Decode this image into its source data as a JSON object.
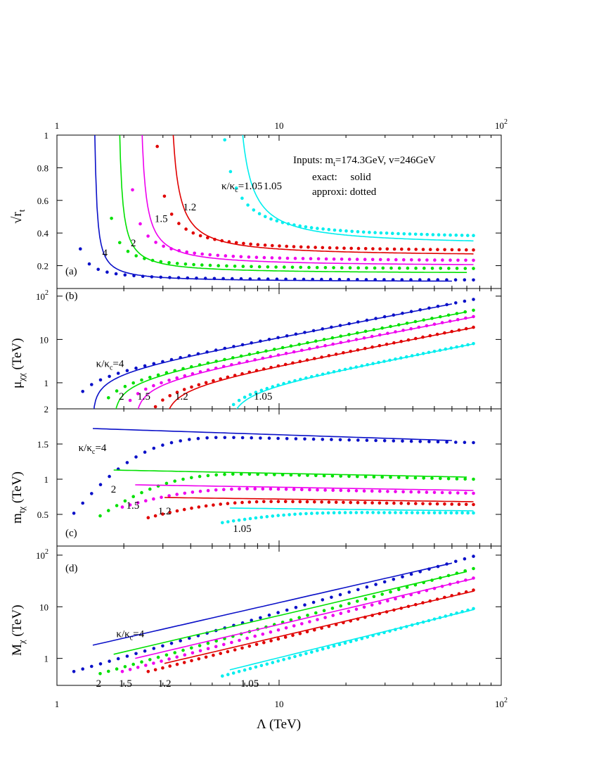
{
  "colors": {
    "4": "#0a10c8",
    "2": "#00e000",
    "1.5": "#ee00ee",
    "1.2": "#e00000",
    "1.05": "#00eeee"
  },
  "legend_note": {
    "inputs": "Inputs: m",
    "inputs_sub": "t",
    "inputs_rest": "=174.3GeV, v=246GeV",
    "exact": "exact:     solid",
    "approx": "approxi: dotted"
  },
  "chart_data": [
    {
      "panel": "(a)",
      "type": "line",
      "ylabel": "√r",
      "ylabel_sub": "t",
      "xscale": "log",
      "xlim": [
        1,
        100
      ],
      "ylim": [
        0.06,
        1.0
      ],
      "yticks": [
        {
          "v": 0.2,
          "label": "0.2"
        },
        {
          "v": 0.4,
          "label": "0.4"
        },
        {
          "v": 0.6,
          "label": "0.6"
        },
        {
          "v": 0.8,
          "label": "0.8"
        },
        {
          "v": 1,
          "label": "1"
        }
      ],
      "series_params": [
        {
          "key": "4",
          "exact": {
            "L0": 1.45,
            "A": 0.1,
            "B": 0.02,
            "xmax": 60
          },
          "approx": {
            "L0": 1.15,
            "A": 0.108,
            "B": 0.02,
            "xmax": 75
          }
        },
        {
          "key": "2",
          "exact": {
            "L0": 1.85,
            "A": 0.15,
            "B": 0.03,
            "xmax": 70
          },
          "approx": {
            "L0": 1.6,
            "A": 0.175,
            "B": 0.03,
            "xmax": 75
          }
        },
        {
          "key": "1.5",
          "exact": {
            "L0": 2.3,
            "A": 0.195,
            "B": 0.04,
            "xmax": 75
          },
          "approx": {
            "L0": 2.0,
            "A": 0.222,
            "B": 0.04,
            "xmax": 75
          }
        },
        {
          "key": "1.2",
          "exact": {
            "L0": 3.1,
            "A": 0.255,
            "B": 0.055,
            "xmax": 75
          },
          "approx": {
            "L0": 2.6,
            "A": 0.28,
            "B": 0.055,
            "xmax": 75
          }
        },
        {
          "key": "1.05",
          "exact": {
            "L0": 6.1,
            "A": 0.32,
            "B": 0.08,
            "xmax": 75
          },
          "approx": {
            "L0": 5.0,
            "A": 0.355,
            "B": 0.08,
            "xmax": 75
          }
        }
      ],
      "labels": [
        {
          "text": "4",
          "x": 1.6,
          "y": 0.28
        },
        {
          "text": "2",
          "x": 2.15,
          "y": 0.34
        },
        {
          "text": "1.5",
          "x": 2.75,
          "y": 0.49
        },
        {
          "text": "1.2",
          "x": 3.7,
          "y": 0.56
        },
        {
          "text": "1.05",
          "x": 8.5,
          "y": 0.69
        }
      ],
      "kappa_label": {
        "text": "κ/κ",
        "sub": "c",
        "rest": "=1.05",
        "x": 5.5,
        "y": 0.69
      }
    },
    {
      "panel": "(b)",
      "type": "line",
      "ylabel": "μ",
      "ylabel_sub": "χχ",
      "ylabel_unit": " (TeV)",
      "xscale": "log",
      "yscale": "log",
      "xlim": [
        1,
        100
      ],
      "ylim": [
        0.25,
        150
      ],
      "yticks": [
        {
          "v": 1,
          "label": "1"
        },
        {
          "v": 10,
          "label": "10"
        },
        {
          "v": 100,
          "label": "10",
          "exp": "2"
        }
      ],
      "series_params": [
        {
          "key": "4",
          "exact": {
            "L0": 1.45,
            "k": 1.1,
            "xmax": 60
          },
          "approx": {
            "L0": 1.18,
            "k": 1.12,
            "xmax": 75
          }
        },
        {
          "key": "2",
          "exact": {
            "L0": 1.8,
            "k": 0.62,
            "xmax": 70
          },
          "approx": {
            "L0": 1.55,
            "k": 0.63,
            "xmax": 75
          }
        },
        {
          "key": "1.5",
          "exact": {
            "L0": 2.25,
            "k": 0.44,
            "xmax": 75
          },
          "approx": {
            "L0": 1.95,
            "k": 0.45,
            "xmax": 75
          }
        },
        {
          "key": "1.2",
          "exact": {
            "L0": 3.05,
            "k": 0.25,
            "xmax": 75
          },
          "approx": {
            "L0": 2.55,
            "k": 0.255,
            "xmax": 75
          }
        },
        {
          "key": "1.05",
          "exact": {
            "L0": 6.0,
            "k": 0.105,
            "xmax": 75
          },
          "approx": {
            "L0": 5.5,
            "k": 0.107,
            "xmax": 75
          }
        }
      ],
      "labels": [
        {
          "text": "2",
          "x": 1.9,
          "y": 0.49
        },
        {
          "text": "1.5",
          "x": 2.3,
          "y": 0.49
        },
        {
          "text": "1.2",
          "x": 3.4,
          "y": 0.49
        },
        {
          "text": "1.05",
          "x": 7.7,
          "y": 0.49
        }
      ],
      "kappa_label": {
        "text": "κ/κ",
        "sub": "c",
        "rest": "=4",
        "x": 1.5,
        "y": 2.8
      }
    },
    {
      "panel": "(c)",
      "type": "line",
      "ylabel": "m",
      "ylabel_sub": "tχ",
      "ylabel_unit": " (TeV)",
      "xscale": "log",
      "xlim": [
        1,
        100
      ],
      "ylim": [
        0.05,
        2.0
      ],
      "yticks": [
        {
          "v": 0.5,
          "label": "0.5"
        },
        {
          "v": 1,
          "label": "1"
        },
        {
          "v": 1.5,
          "label": "1.5"
        },
        {
          "v": 2,
          "label": "2"
        }
      ],
      "series_params": [
        {
          "key": "4",
          "exact": {
            "x0": 1.45,
            "y0": 1.72,
            "y1": 1.55,
            "xmax": 60
          },
          "approx": {
            "x0": 1.18,
            "ystart": 0.5,
            "plateau": 1.6,
            "yend": 1.52,
            "xmax": 75
          }
        },
        {
          "key": "2",
          "exact": {
            "x0": 1.8,
            "y0": 1.13,
            "y1": 1.03,
            "xmax": 70
          },
          "approx": {
            "x0": 1.55,
            "ystart": 0.47,
            "plateau": 1.08,
            "yend": 1.0,
            "xmax": 75
          }
        },
        {
          "key": "1.5",
          "exact": {
            "x0": 2.25,
            "y0": 0.92,
            "y1": 0.84,
            "xmax": 75
          },
          "approx": {
            "x0": 1.95,
            "ystart": 0.6,
            "plateau": 0.87,
            "yend": 0.8,
            "xmax": 75
          }
        },
        {
          "key": "1.2",
          "exact": {
            "x0": 3.05,
            "y0": 0.74,
            "y1": 0.68,
            "xmax": 75
          },
          "approx": {
            "x0": 2.55,
            "ystart": 0.45,
            "plateau": 0.69,
            "yend": 0.64,
            "xmax": 75
          }
        },
        {
          "key": "1.05",
          "exact": {
            "x0": 6.0,
            "y0": 0.59,
            "y1": 0.55,
            "xmax": 75
          },
          "approx": {
            "x0": 5.5,
            "ystart": 0.38,
            "plateau": 0.53,
            "yend": 0.52,
            "xmax": 75
          }
        }
      ],
      "labels": [
        {
          "text": "2",
          "x": 1.75,
          "y": 0.86
        },
        {
          "text": "1.5",
          "x": 2.05,
          "y": 0.63
        },
        {
          "text": "1.2",
          "x": 2.85,
          "y": 0.55
        },
        {
          "text": "1.05",
          "x": 6.2,
          "y": 0.3
        }
      ],
      "kappa_label": {
        "text": "κ/κ",
        "sub": "c",
        "rest": "=4",
        "x": 1.25,
        "y": 1.45
      }
    },
    {
      "panel": "(d)",
      "type": "line",
      "ylabel": "M",
      "ylabel_sub": "χ",
      "ylabel_unit": " (TeV)",
      "xscale": "log",
      "yscale": "log",
      "xlim": [
        1,
        100
      ],
      "ylim": [
        0.3,
        150
      ],
      "yticks": [
        {
          "v": 1,
          "label": "1"
        },
        {
          "v": 10,
          "label": "10"
        },
        {
          "v": 100,
          "label": "10",
          "exp": "2"
        }
      ],
      "series_params": [
        {
          "key": "4",
          "exact": {
            "x0": 1.45,
            "y0": 1.8,
            "x1": 60,
            "y1": 70
          },
          "approx": {
            "x0": 1.18,
            "y0": 0.55,
            "x1": 75,
            "y1": 95
          }
        },
        {
          "key": "2",
          "exact": {
            "x0": 1.8,
            "y0": 1.2,
            "x1": 70,
            "y1": 48
          },
          "approx": {
            "x0": 1.55,
            "y0": 0.5,
            "x1": 75,
            "y1": 55
          }
        },
        {
          "key": "1.5",
          "exact": {
            "x0": 2.25,
            "y0": 1.0,
            "x1": 75,
            "y1": 35
          },
          "approx": {
            "x0": 1.95,
            "y0": 0.55,
            "x1": 75,
            "y1": 36
          }
        },
        {
          "key": "1.2",
          "exact": {
            "x0": 3.05,
            "y0": 0.8,
            "x1": 75,
            "y1": 20
          },
          "approx": {
            "x0": 2.55,
            "y0": 0.55,
            "x1": 75,
            "y1": 21
          }
        },
        {
          "key": "1.05",
          "exact": {
            "x0": 6.0,
            "y0": 0.6,
            "x1": 75,
            "y1": 8.8
          },
          "approx": {
            "x0": 5.5,
            "y0": 0.45,
            "x1": 75,
            "y1": 9.2
          }
        }
      ],
      "labels": [
        {
          "text": "2",
          "x": 1.5,
          "y": 0.33
        },
        {
          "text": "1.5",
          "x": 1.9,
          "y": 0.33
        },
        {
          "text": "1.2",
          "x": 2.85,
          "y": 0.33
        },
        {
          "text": "1.05",
          "x": 6.7,
          "y": 0.33
        }
      ],
      "kappa_label": {
        "text": "κ/κ",
        "sub": "c",
        "rest": "=4",
        "x": 1.85,
        "y": 3.0
      }
    }
  ],
  "x_axis": {
    "label": "Λ (TeV)",
    "ticks": [
      {
        "v": 1,
        "label": "1"
      },
      {
        "v": 10,
        "label": "10"
      },
      {
        "v": 100,
        "label": "10",
        "exp": "2"
      }
    ]
  }
}
